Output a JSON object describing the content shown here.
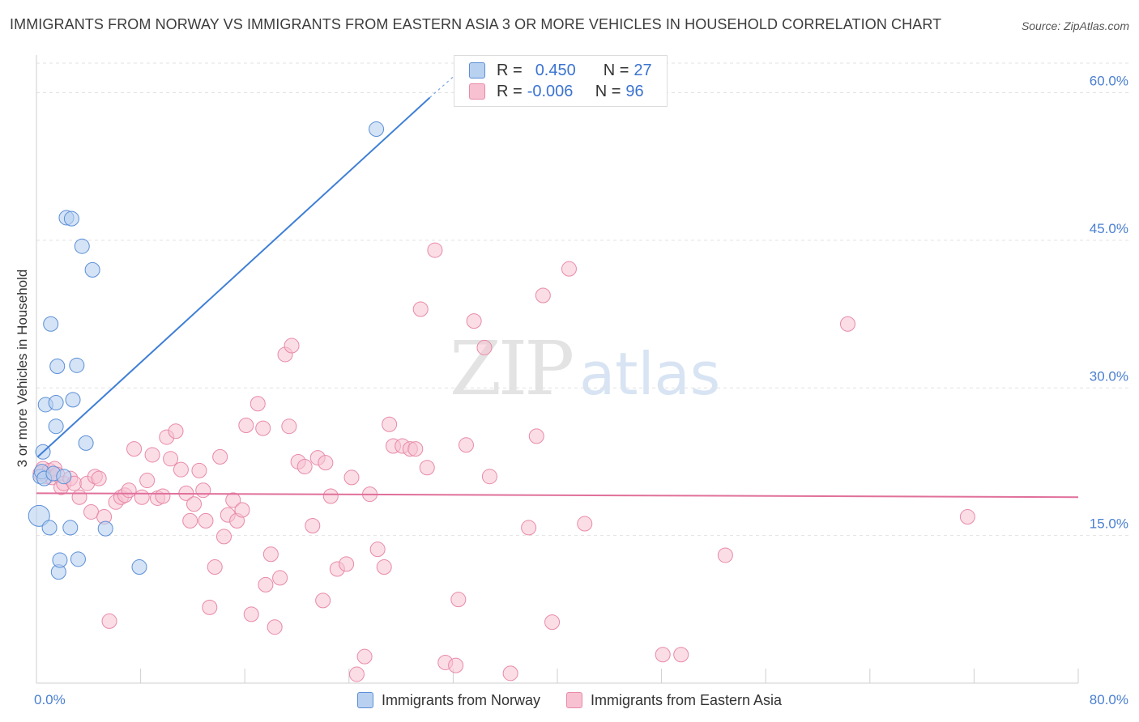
{
  "title": "IMMIGRANTS FROM NORWAY VS IMMIGRANTS FROM EASTERN ASIA 3 OR MORE VEHICLES IN HOUSEHOLD CORRELATION CHART",
  "source": "Source: ZipAtlas.com",
  "watermark": {
    "part1": "ZIP",
    "part2": "atlas"
  },
  "legend_top": [
    {
      "r_label": "R =",
      "r_value": "0.450",
      "n_label": "N =",
      "n_value": "27"
    },
    {
      "r_label": "R =",
      "r_value": "-0.006",
      "n_label": "N =",
      "n_value": "96"
    }
  ],
  "colors": {
    "norway_fill": "#b8d1f0",
    "norway_stroke": "#5b8fd6",
    "norway_line": "#3f7fd6",
    "asia_fill": "#f7c1d2",
    "asia_stroke": "#e88aa8",
    "asia_line": "#e0709a",
    "grid": "#e2e2e2",
    "tick_label": "#4a7fd0"
  },
  "chart_data": {
    "type": "scatter",
    "title": "IMMIGRANTS FROM NORWAY VS IMMIGRANTS FROM EASTERN ASIA 3 OR MORE VEHICLES IN HOUSEHOLD CORRELATION CHART",
    "xlabel": "",
    "ylabel": "3 or more Vehicles in Household",
    "xlim": [
      0,
      80
    ],
    "ylim": [
      0,
      63.5
    ],
    "x_tick_labels": [
      {
        "value": 0,
        "label": "0.0%"
      },
      {
        "value": 80,
        "label": "80.0%"
      }
    ],
    "x_minor_ticks": [
      8,
      16,
      24,
      32,
      40,
      48,
      56,
      64,
      72,
      80
    ],
    "y_ticks": [
      {
        "value": 15,
        "label": "15.0%"
      },
      {
        "value": 30,
        "label": "30.0%"
      },
      {
        "value": 45,
        "label": "45.0%"
      },
      {
        "value": 60,
        "label": "60.0%"
      }
    ],
    "grid": true,
    "legend_position": "bottom-center",
    "series": [
      {
        "name": "Immigrants from Norway",
        "r": 0.45,
        "n": 27,
        "trend": {
          "x": [
            0.1,
            30.2
          ],
          "y": [
            23.0,
            59.5
          ]
        },
        "trend_dashed": {
          "x": [
            30.2,
            33.6
          ],
          "y": [
            59.5,
            63.5
          ]
        },
        "points": [
          {
            "x": 0.2,
            "y": 17.0
          },
          {
            "x": 0.3,
            "y": 21.0
          },
          {
            "x": 0.4,
            "y": 21.5
          },
          {
            "x": 0.6,
            "y": 20.8
          },
          {
            "x": 0.5,
            "y": 23.5
          },
          {
            "x": 0.7,
            "y": 28.3
          },
          {
            "x": 1.0,
            "y": 15.8
          },
          {
            "x": 1.1,
            "y": 36.5
          },
          {
            "x": 1.3,
            "y": 21.3
          },
          {
            "x": 1.5,
            "y": 28.5
          },
          {
            "x": 1.5,
            "y": 26.1
          },
          {
            "x": 1.6,
            "y": 32.2
          },
          {
            "x": 1.7,
            "y": 11.3
          },
          {
            "x": 1.8,
            "y": 12.5
          },
          {
            "x": 2.1,
            "y": 21.0
          },
          {
            "x": 2.3,
            "y": 47.3
          },
          {
            "x": 2.6,
            "y": 15.8
          },
          {
            "x": 2.7,
            "y": 47.2
          },
          {
            "x": 2.8,
            "y": 28.8
          },
          {
            "x": 3.1,
            "y": 32.3
          },
          {
            "x": 3.2,
            "y": 12.6
          },
          {
            "x": 3.5,
            "y": 44.4
          },
          {
            "x": 3.8,
            "y": 24.4
          },
          {
            "x": 4.3,
            "y": 42.0
          },
          {
            "x": 5.3,
            "y": 15.7
          },
          {
            "x": 7.9,
            "y": 11.8
          },
          {
            "x": 26.1,
            "y": 56.3
          }
        ]
      },
      {
        "name": "Immigrants from Eastern Asia",
        "r": -0.006,
        "n": 96,
        "trend": {
          "x": [
            0.0,
            80.0
          ],
          "y": [
            19.3,
            18.9
          ]
        },
        "points": [
          {
            "x": 0.3,
            "y": 21.3
          },
          {
            "x": 0.5,
            "y": 21.8
          },
          {
            "x": 0.8,
            "y": 21.0
          },
          {
            "x": 1.0,
            "y": 21.6
          },
          {
            "x": 1.2,
            "y": 20.9
          },
          {
            "x": 1.4,
            "y": 21.8
          },
          {
            "x": 1.6,
            "y": 21.2
          },
          {
            "x": 1.9,
            "y": 19.9
          },
          {
            "x": 2.1,
            "y": 20.3
          },
          {
            "x": 2.6,
            "y": 20.8
          },
          {
            "x": 2.9,
            "y": 20.3
          },
          {
            "x": 3.3,
            "y": 18.9
          },
          {
            "x": 3.9,
            "y": 20.3
          },
          {
            "x": 4.2,
            "y": 17.4
          },
          {
            "x": 4.5,
            "y": 21.0
          },
          {
            "x": 4.8,
            "y": 20.8
          },
          {
            "x": 5.2,
            "y": 16.9
          },
          {
            "x": 5.6,
            "y": 6.3
          },
          {
            "x": 6.1,
            "y": 18.4
          },
          {
            "x": 6.5,
            "y": 18.9
          },
          {
            "x": 6.8,
            "y": 19.1
          },
          {
            "x": 7.1,
            "y": 19.6
          },
          {
            "x": 7.5,
            "y": 23.8
          },
          {
            "x": 8.1,
            "y": 18.9
          },
          {
            "x": 8.5,
            "y": 20.6
          },
          {
            "x": 8.9,
            "y": 23.2
          },
          {
            "x": 9.3,
            "y": 18.8
          },
          {
            "x": 9.7,
            "y": 19.0
          },
          {
            "x": 10.0,
            "y": 25.0
          },
          {
            "x": 10.3,
            "y": 22.8
          },
          {
            "x": 10.7,
            "y": 25.6
          },
          {
            "x": 11.1,
            "y": 21.7
          },
          {
            "x": 11.5,
            "y": 19.3
          },
          {
            "x": 11.8,
            "y": 16.5
          },
          {
            "x": 12.1,
            "y": 18.2
          },
          {
            "x": 12.5,
            "y": 21.6
          },
          {
            "x": 12.8,
            "y": 19.6
          },
          {
            "x": 13.0,
            "y": 16.5
          },
          {
            "x": 13.3,
            "y": 7.7
          },
          {
            "x": 13.7,
            "y": 11.8
          },
          {
            "x": 14.1,
            "y": 23.0
          },
          {
            "x": 14.4,
            "y": 14.9
          },
          {
            "x": 14.7,
            "y": 17.1
          },
          {
            "x": 15.1,
            "y": 18.6
          },
          {
            "x": 15.4,
            "y": 16.5
          },
          {
            "x": 15.8,
            "y": 17.6
          },
          {
            "x": 16.1,
            "y": 26.2
          },
          {
            "x": 16.5,
            "y": 7.0
          },
          {
            "x": 17.0,
            "y": 28.4
          },
          {
            "x": 17.4,
            "y": 25.9
          },
          {
            "x": 17.6,
            "y": 10.0
          },
          {
            "x": 18.0,
            "y": 13.1
          },
          {
            "x": 18.3,
            "y": 5.7
          },
          {
            "x": 18.7,
            "y": 10.7
          },
          {
            "x": 19.1,
            "y": 33.4
          },
          {
            "x": 19.6,
            "y": 34.3
          },
          {
            "x": 19.4,
            "y": 26.1
          },
          {
            "x": 20.1,
            "y": 22.5
          },
          {
            "x": 20.6,
            "y": 22.0
          },
          {
            "x": 21.2,
            "y": 16.0
          },
          {
            "x": 21.6,
            "y": 22.9
          },
          {
            "x": 22.0,
            "y": 8.4
          },
          {
            "x": 22.2,
            "y": 22.4
          },
          {
            "x": 22.6,
            "y": 19.0
          },
          {
            "x": 23.1,
            "y": 11.6
          },
          {
            "x": 23.8,
            "y": 12.1
          },
          {
            "x": 24.2,
            "y": 20.9
          },
          {
            "x": 24.6,
            "y": 0.9
          },
          {
            "x": 25.2,
            "y": 2.7
          },
          {
            "x": 25.6,
            "y": 19.2
          },
          {
            "x": 26.2,
            "y": 13.6
          },
          {
            "x": 26.7,
            "y": 11.8
          },
          {
            "x": 27.1,
            "y": 26.3
          },
          {
            "x": 27.4,
            "y": 24.1
          },
          {
            "x": 28.1,
            "y": 24.1
          },
          {
            "x": 28.7,
            "y": 23.8
          },
          {
            "x": 29.1,
            "y": 23.8
          },
          {
            "x": 29.5,
            "y": 38.0
          },
          {
            "x": 30.0,
            "y": 21.9
          },
          {
            "x": 30.6,
            "y": 44.0
          },
          {
            "x": 31.4,
            "y": 2.1
          },
          {
            "x": 32.2,
            "y": 1.8
          },
          {
            "x": 32.4,
            "y": 8.5
          },
          {
            "x": 33.0,
            "y": 24.2
          },
          {
            "x": 33.6,
            "y": 36.8
          },
          {
            "x": 34.4,
            "y": 34.1
          },
          {
            "x": 34.8,
            "y": 21.0
          },
          {
            "x": 36.4,
            "y": 1.0
          },
          {
            "x": 37.8,
            "y": 15.8
          },
          {
            "x": 38.4,
            "y": 25.1
          },
          {
            "x": 38.9,
            "y": 39.4
          },
          {
            "x": 39.6,
            "y": 6.2
          },
          {
            "x": 40.9,
            "y": 42.1
          },
          {
            "x": 42.1,
            "y": 16.2
          },
          {
            "x": 48.1,
            "y": 2.9
          },
          {
            "x": 49.5,
            "y": 2.9
          },
          {
            "x": 52.9,
            "y": 13.0
          },
          {
            "x": 62.3,
            "y": 36.5
          },
          {
            "x": 71.5,
            "y": 16.9
          }
        ]
      }
    ]
  },
  "legend_bottom": [
    {
      "label": "Immigrants from Norway"
    },
    {
      "label": "Immigrants from Eastern Asia"
    }
  ]
}
